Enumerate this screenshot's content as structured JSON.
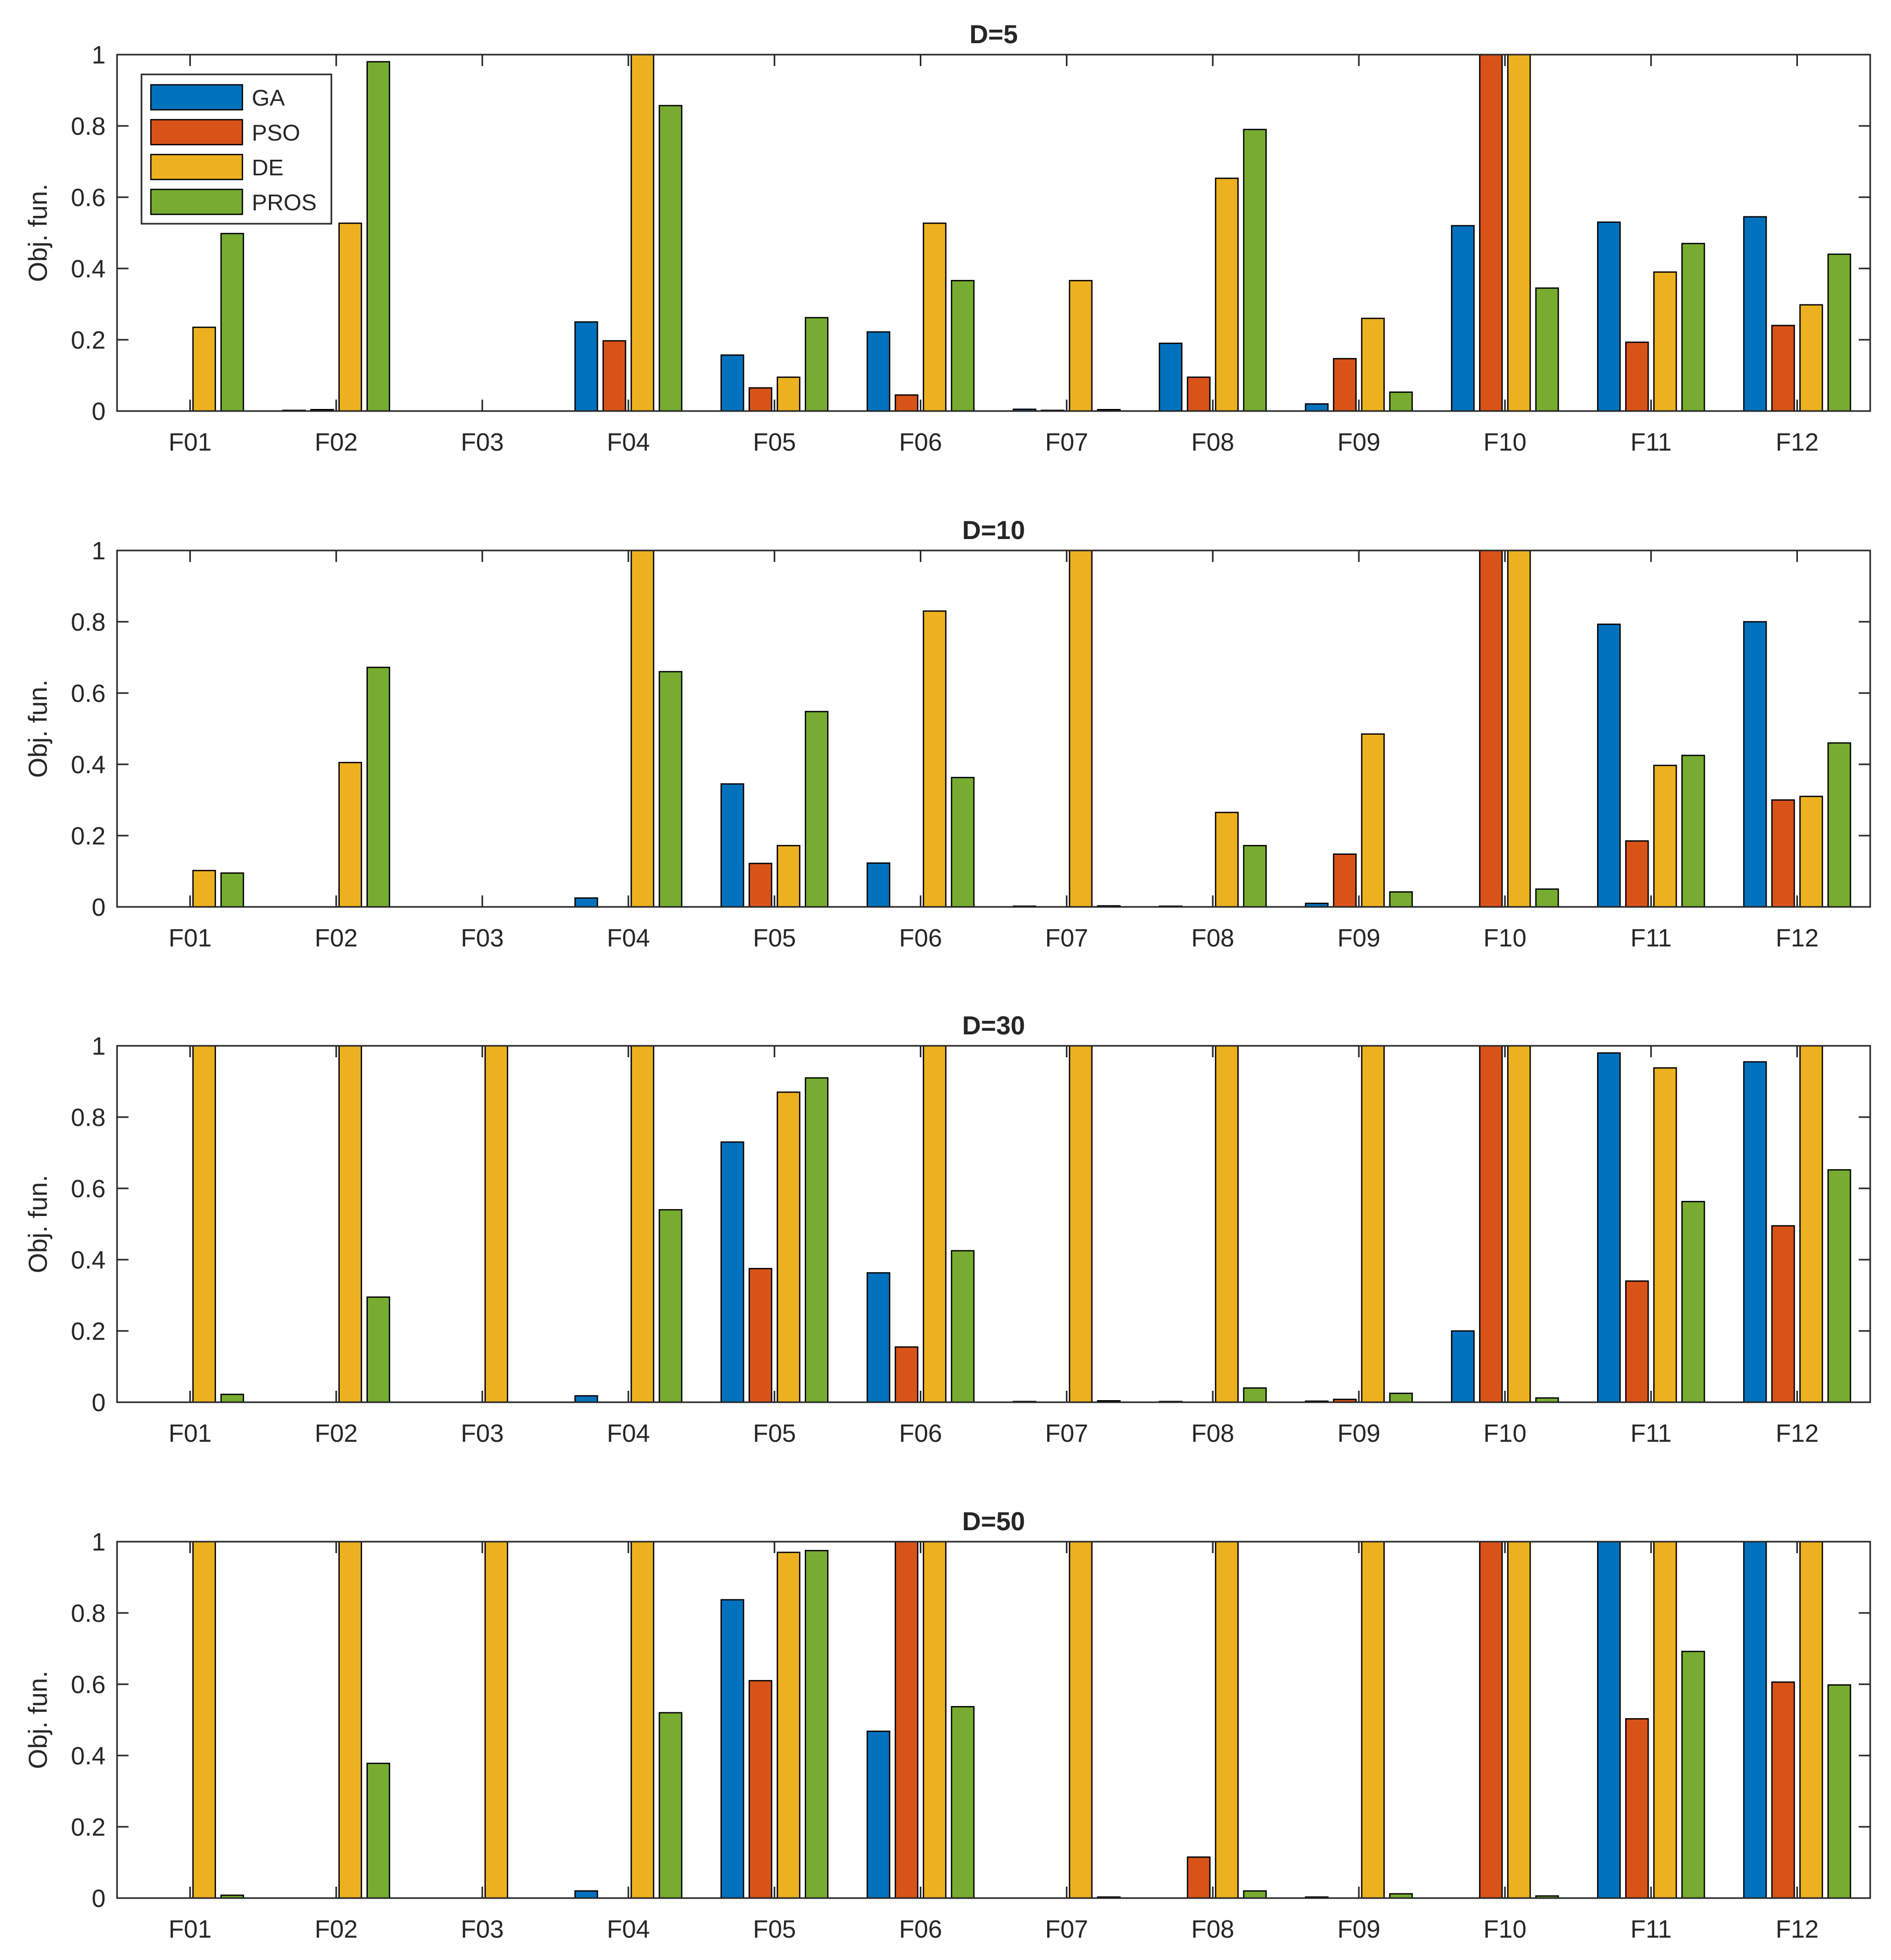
{
  "chart_data": [
    {
      "type": "bar",
      "title": "D=5",
      "ylabel": "Obj. fun.",
      "xlabel": "",
      "ylim": [
        0,
        1
      ],
      "yticks": [
        0,
        0.2,
        0.4,
        0.6,
        0.8,
        1
      ],
      "categories": [
        "F01",
        "F02",
        "F03",
        "F04",
        "F05",
        "F06",
        "F07",
        "F08",
        "F09",
        "F10",
        "F11",
        "F12"
      ],
      "legend": {
        "position": "top-left",
        "entries": [
          "GA",
          "PSO",
          "DE",
          "PROS"
        ]
      },
      "series": [
        {
          "name": "GA",
          "values": [
            0,
            0.002,
            0,
            0.25,
            0.157,
            0.222,
            0.005,
            0.19,
            0.02,
            0.52,
            0.53,
            0.545
          ]
        },
        {
          "name": "PSO",
          "values": [
            0,
            0.004,
            0,
            0.197,
            0.065,
            0.045,
            0.002,
            0.095,
            0.147,
            1.0,
            0.193,
            0.24
          ]
        },
        {
          "name": "DE",
          "values": [
            0.235,
            0.527,
            0,
            1.0,
            0.095,
            0.527,
            0.366,
            0.653,
            0.26,
            1.0,
            0.39,
            0.298
          ]
        },
        {
          "name": "PROS",
          "values": [
            0.498,
            0.98,
            0,
            0.857,
            0.262,
            0.366,
            0.004,
            0.79,
            0.053,
            0.345,
            0.47,
            0.44
          ]
        }
      ]
    },
    {
      "type": "bar",
      "title": "D=10",
      "ylabel": "Obj. fun.",
      "xlabel": "",
      "ylim": [
        0,
        1
      ],
      "yticks": [
        0,
        0.2,
        0.4,
        0.6,
        0.8,
        1
      ],
      "categories": [
        "F01",
        "F02",
        "F03",
        "F04",
        "F05",
        "F06",
        "F07",
        "F08",
        "F09",
        "F10",
        "F11",
        "F12"
      ],
      "series": [
        {
          "name": "GA",
          "values": [
            0,
            0,
            0,
            0.025,
            0.345,
            0.123,
            0.002,
            0.002,
            0.01,
            0,
            0.793,
            0.8
          ]
        },
        {
          "name": "PSO",
          "values": [
            0,
            0,
            0,
            0,
            0.122,
            0,
            0,
            0,
            0.148,
            1.0,
            0.185,
            0.3
          ]
        },
        {
          "name": "DE",
          "values": [
            0.102,
            0.405,
            0,
            1.0,
            0.172,
            0.83,
            1.0,
            0.265,
            0.485,
            1.0,
            0.397,
            0.31
          ]
        },
        {
          "name": "PROS",
          "values": [
            0.095,
            0.672,
            0,
            0.66,
            0.548,
            0.363,
            0.003,
            0.172,
            0.042,
            0.05,
            0.425,
            0.46
          ]
        }
      ]
    },
    {
      "type": "bar",
      "title": "D=30",
      "ylabel": "Obj. fun.",
      "xlabel": "",
      "ylim": [
        0,
        1
      ],
      "yticks": [
        0,
        0.2,
        0.4,
        0.6,
        0.8,
        1
      ],
      "categories": [
        "F01",
        "F02",
        "F03",
        "F04",
        "F05",
        "F06",
        "F07",
        "F08",
        "F09",
        "F10",
        "F11",
        "F12"
      ],
      "series": [
        {
          "name": "GA",
          "values": [
            0,
            0,
            0,
            0.018,
            0.73,
            0.363,
            0.002,
            0.002,
            0.003,
            0.2,
            0.98,
            0.955
          ]
        },
        {
          "name": "PSO",
          "values": [
            0,
            0,
            0,
            0,
            0.375,
            0.155,
            0,
            0,
            0.008,
            1.0,
            0.34,
            0.495
          ]
        },
        {
          "name": "DE",
          "values": [
            1.0,
            1.0,
            1.0,
            1.0,
            0.87,
            1.0,
            1.0,
            1.0,
            1.0,
            1.0,
            0.938,
            1.0
          ]
        },
        {
          "name": "PROS",
          "values": [
            0.022,
            0.295,
            0,
            0.54,
            0.91,
            0.425,
            0.004,
            0.04,
            0.025,
            0.012,
            0.563,
            0.652
          ]
        }
      ]
    },
    {
      "type": "bar",
      "title": "D=50",
      "ylabel": "Obj. fun.",
      "xlabel": "",
      "ylim": [
        0,
        1
      ],
      "yticks": [
        0,
        0.2,
        0.4,
        0.6,
        0.8,
        1
      ],
      "categories": [
        "F01",
        "F02",
        "F03",
        "F04",
        "F05",
        "F06",
        "F07",
        "F08",
        "F09",
        "F10",
        "F11",
        "F12"
      ],
      "series": [
        {
          "name": "GA",
          "values": [
            0,
            0,
            0,
            0.02,
            0.837,
            0.468,
            0,
            0,
            0.003,
            0,
            1.0,
            1.0
          ]
        },
        {
          "name": "PSO",
          "values": [
            0,
            0,
            0,
            0,
            0.61,
            1.0,
            0,
            0.115,
            0,
            1.0,
            0.503,
            0.606
          ]
        },
        {
          "name": "DE",
          "values": [
            1.0,
            1.0,
            1.0,
            1.0,
            0.97,
            1.0,
            1.0,
            1.0,
            1.0,
            1.0,
            1.0,
            1.0
          ]
        },
        {
          "name": "PROS",
          "values": [
            0.008,
            0.378,
            0,
            0.52,
            0.975,
            0.537,
            0.003,
            0.02,
            0.012,
            0.006,
            0.692,
            0.598
          ]
        }
      ]
    }
  ],
  "colors": {
    "GA": "#0072BD",
    "PSO": "#D95319",
    "DE": "#EDB120",
    "PROS": "#77AC30"
  }
}
